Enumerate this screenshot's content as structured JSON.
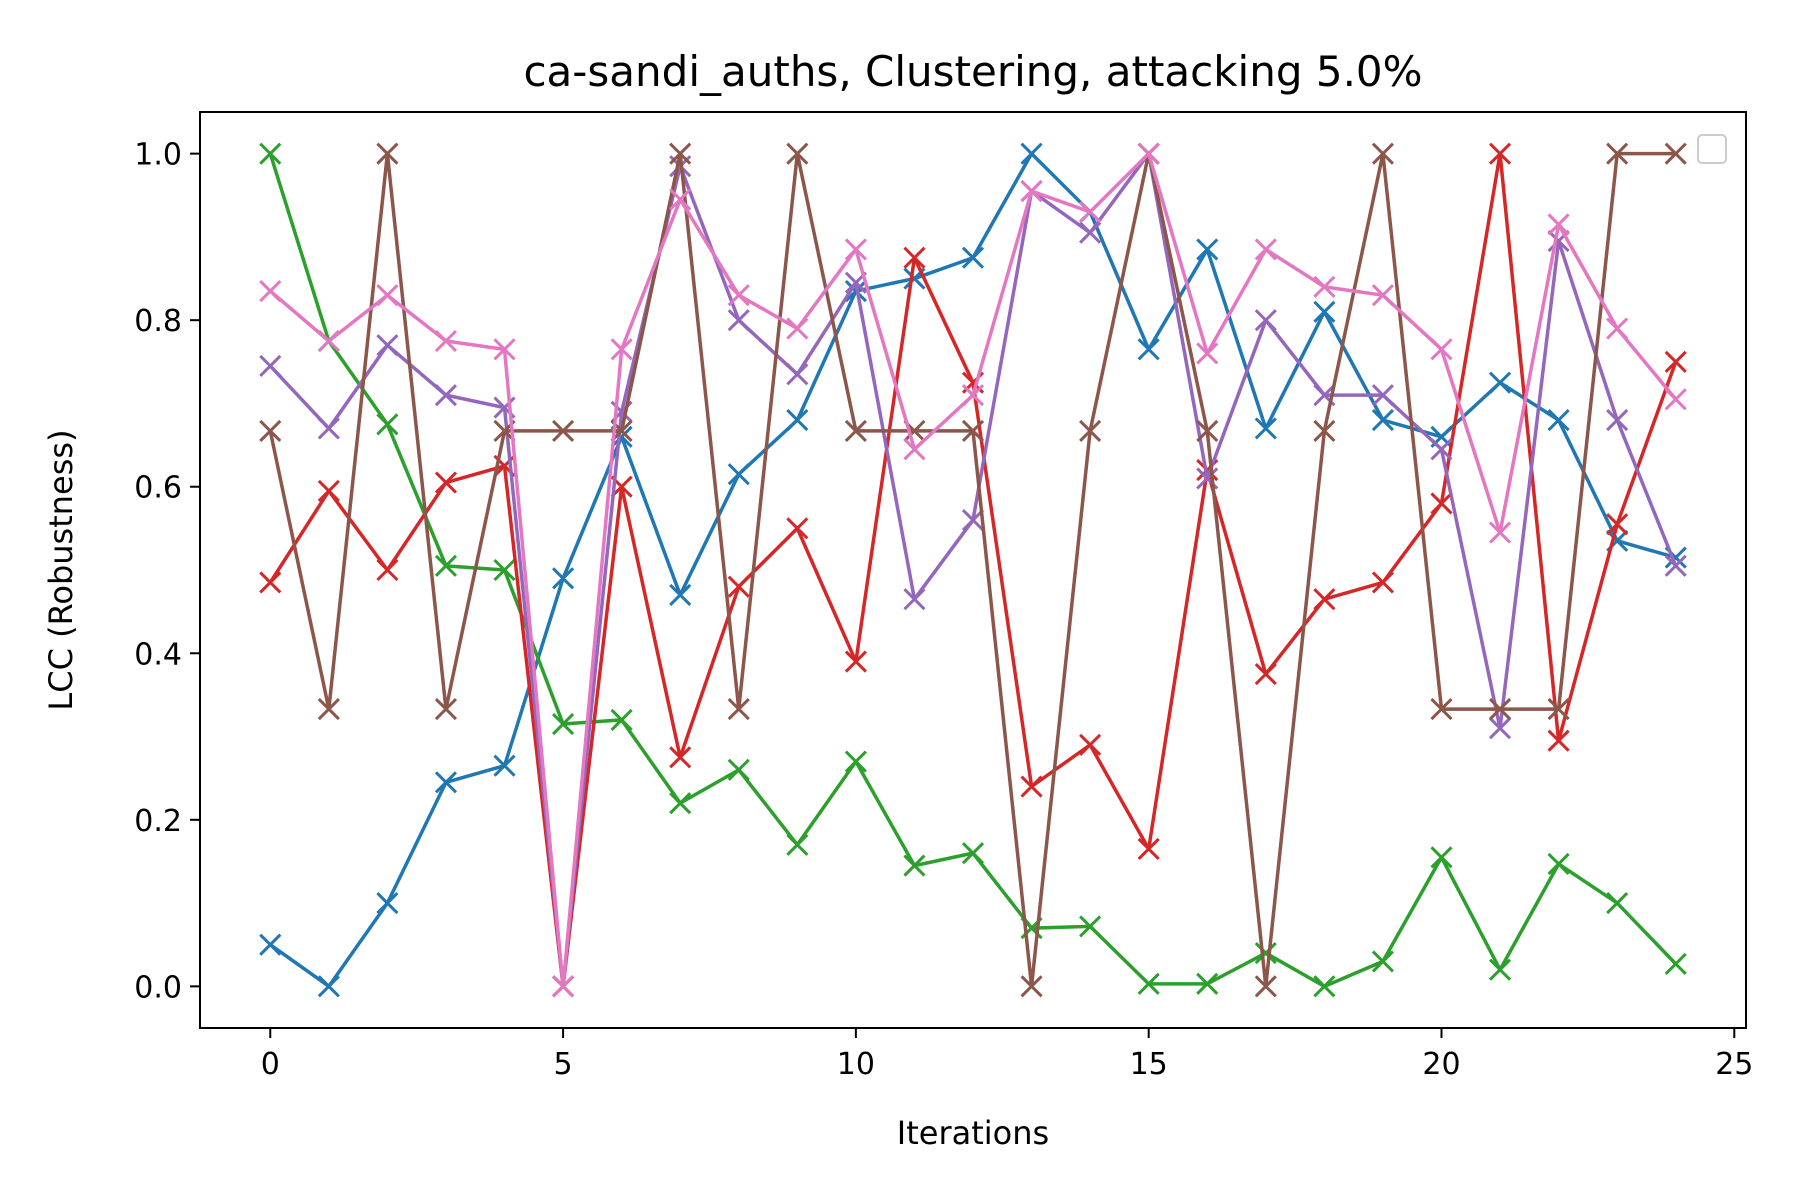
{
  "chart_data": {
    "type": "line",
    "title": "ca-sandi_auths, Clustering, attacking 5.0%",
    "xlabel": "Iterations",
    "ylabel": "LCC (Robustness)",
    "xlim": [
      -1.2,
      25.2
    ],
    "ylim": [
      -0.05,
      1.05
    ],
    "xticks": [
      0,
      5,
      10,
      15,
      20,
      25
    ],
    "xtick_labels": [
      "0",
      "5",
      "10",
      "15",
      "20",
      "25"
    ],
    "yticks": [
      0.0,
      0.2,
      0.4,
      0.6,
      0.8,
      1.0
    ],
    "ytick_labels": [
      "0.0",
      "0.2",
      "0.4",
      "0.6",
      "0.8",
      "1.0"
    ],
    "grid": false,
    "legend": "top-right (empty)",
    "marker": "x",
    "x": [
      0,
      1,
      2,
      3,
      4,
      5,
      6,
      7,
      8,
      9,
      10,
      11,
      12,
      13,
      14,
      15,
      16,
      17,
      18,
      19,
      20,
      21,
      22,
      23,
      24
    ],
    "series": [
      {
        "color": "#1f77b4",
        "values": [
          0.05,
          0.0,
          0.1,
          0.245,
          0.265,
          0.49,
          0.66,
          0.47,
          0.615,
          0.68,
          0.835,
          0.85,
          0.875,
          1.0,
          0.93,
          0.765,
          0.885,
          0.67,
          0.81,
          0.68,
          0.66,
          0.725,
          0.68,
          0.535,
          0.515
        ]
      },
      {
        "color": "#2ca02c",
        "values": [
          1.0,
          0.775,
          0.675,
          0.505,
          0.5,
          0.315,
          0.32,
          0.22,
          0.26,
          0.17,
          0.27,
          0.145,
          0.16,
          0.07,
          0.072,
          0.003,
          0.003,
          0.04,
          0.0,
          0.03,
          0.155,
          0.02,
          0.147,
          0.1,
          0.027
        ]
      },
      {
        "color": "#d62728",
        "values": [
          0.485,
          0.595,
          0.5,
          0.605,
          0.625,
          0.0,
          0.6,
          0.275,
          0.48,
          0.55,
          0.39,
          0.875,
          0.725,
          0.24,
          0.29,
          0.165,
          0.62,
          0.375,
          0.465,
          0.485,
          0.58,
          1.0,
          0.295,
          0.555,
          0.75
        ]
      },
      {
        "color": "#9467bd",
        "values": [
          0.745,
          0.67,
          0.77,
          0.71,
          0.695,
          0.0,
          0.69,
          0.985,
          0.8,
          0.735,
          0.845,
          0.465,
          0.56,
          0.955,
          0.905,
          1.0,
          0.61,
          0.8,
          0.71,
          0.71,
          0.645,
          0.31,
          0.895,
          0.68,
          0.505
        ]
      },
      {
        "color": "#8c564b",
        "values": [
          0.667,
          0.333,
          1.0,
          0.333,
          0.667,
          0.667,
          0.667,
          1.0,
          0.333,
          1.0,
          0.667,
          0.667,
          0.667,
          0.0,
          0.667,
          1.0,
          0.667,
          0.0,
          0.667,
          1.0,
          0.333,
          0.333,
          0.333,
          1.0,
          1.0
        ]
      },
      {
        "color": "#e377c2",
        "values": [
          0.835,
          0.775,
          0.83,
          0.775,
          0.765,
          0.0,
          0.765,
          0.945,
          0.83,
          0.79,
          0.885,
          0.645,
          0.71,
          0.955,
          0.93,
          1.0,
          0.76,
          0.885,
          0.84,
          0.83,
          0.765,
          0.545,
          0.915,
          0.79,
          0.705
        ]
      }
    ]
  }
}
